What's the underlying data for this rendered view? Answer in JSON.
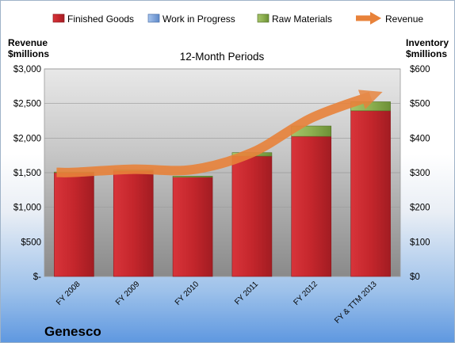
{
  "chart_data": {
    "type": "bar",
    "stacked": true,
    "subtitle": "12-Month Periods",
    "company": "Genesco",
    "left_axis": {
      "title_line1": "Revenue",
      "title_line2": "$millions",
      "range": [
        0,
        3000
      ],
      "ticks": [
        0,
        500,
        1000,
        1500,
        2000,
        2500,
        3000
      ],
      "tick_labels": [
        "$-",
        "$500",
        "$1,000",
        "$1,500",
        "$2,000",
        "$2,500",
        "$3,000"
      ]
    },
    "right_axis": {
      "title_line1": "Inventory",
      "title_line2": "$millions",
      "range": [
        0,
        600
      ],
      "ticks": [
        0,
        100,
        200,
        300,
        400,
        500,
        600
      ],
      "tick_labels": [
        "$0",
        "$100",
        "$200",
        "$300",
        "$400",
        "$500",
        "$600"
      ]
    },
    "categories": [
      "FY 2008",
      "FY 2009",
      "FY 2010",
      "FY 2011",
      "FY 2012",
      "FY & TTM 2013"
    ],
    "series": [
      {
        "name": "Finished Goods",
        "axis": "right",
        "color": "#c4262c",
        "values": [
          300,
          305,
          287,
          348,
          405,
          479
        ]
      },
      {
        "name": "Work in Progress",
        "axis": "right",
        "color": "#6f9ad6",
        "values": [
          0,
          0,
          0,
          0,
          0,
          0
        ]
      },
      {
        "name": "Raw Materials",
        "axis": "right",
        "color": "#7fa040",
        "values": [
          2,
          3,
          3,
          10,
          30,
          26
        ]
      },
      {
        "name": "Revenue",
        "axis": "left",
        "type": "line",
        "color": "#e8823a",
        "values": [
          1505,
          1550,
          1545,
          1790,
          2290,
          2605
        ]
      }
    ],
    "grid": true,
    "legend_position": "top"
  }
}
